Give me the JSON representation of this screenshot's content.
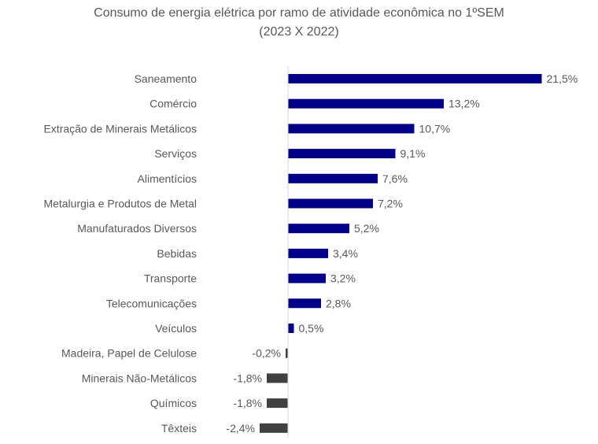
{
  "chart_data": {
    "type": "bar",
    "orientation": "horizontal",
    "title": "Consumo de energia elétrica por ramo de atividade econômica no 1ºSEM",
    "subtitle": "(2023 X 2022)",
    "categories": [
      "Saneamento",
      "Comércio",
      "Extração de Minerais Metálicos",
      "Serviços",
      "Alimentícios",
      "Metalurgia e Produtos de Metal",
      "Manufaturados Diversos",
      "Bebidas",
      "Transporte",
      "Telecomunicações",
      "Veículos",
      "Madeira, Papel de Celulose",
      "Minerais Não-Metálicos",
      "Químicos",
      "Têxteis"
    ],
    "values": [
      21.5,
      13.2,
      10.7,
      9.1,
      7.6,
      7.2,
      5.2,
      3.4,
      3.2,
      2.8,
      0.5,
      -0.2,
      -1.8,
      -1.8,
      -2.4
    ],
    "labels": [
      "21,5%",
      "13,2%",
      "10,7%",
      "9,1%",
      "7,6%",
      "7,2%",
      "5,2%",
      "3,4%",
      "3,2%",
      "2,8%",
      "0,5%",
      "-0,2%",
      "-1,8%",
      "-1,8%",
      "-2,4%"
    ],
    "unit": "%",
    "grid": false,
    "legend": "none",
    "colors": {
      "positive": "#00008B",
      "negative": "#404040",
      "axis": "#D9D9D9"
    }
  }
}
